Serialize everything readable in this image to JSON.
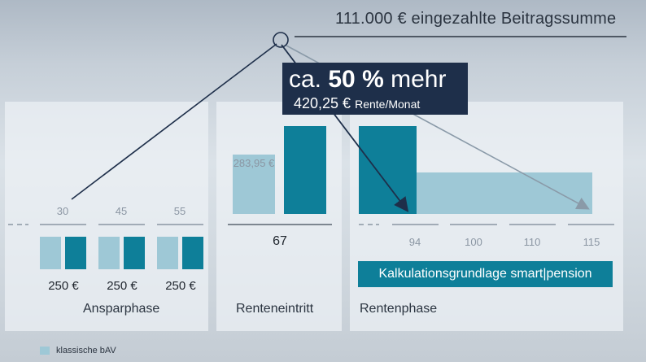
{
  "header": {
    "title": "111.000 € eingezahlte Beitragssumme"
  },
  "callout": {
    "prefix": "ca.",
    "percent": "50 %",
    "suffix": "mehr",
    "amount": "420,25 €",
    "unit": "Rente/Monat"
  },
  "panels": {
    "ansparphase": "Ansparphase",
    "renteneintritt": "Renteneintritt",
    "rentenphase": "Rentenphase"
  },
  "calc_label": "Kalkulationsgrundlage smart|pension",
  "legend": {
    "label": "klassische bAV"
  },
  "colors": {
    "light_bar": "#9ec8d6",
    "dark_bar": "#0e7f99",
    "callout_bg": "#1e2f4a"
  },
  "chart_data": {
    "type": "bar",
    "ansparphase": {
      "ages": [
        "30",
        "45",
        "55"
      ],
      "contribution_labels": [
        "250 €",
        "250 €",
        "250 €"
      ]
    },
    "renteneintritt": {
      "age": "67",
      "classic_value_label": "283,95 €",
      "classic_value": 283.95,
      "smart_value": 420.25
    },
    "rentenphase": {
      "ages": [
        "94",
        "100",
        "110",
        "115"
      ]
    }
  }
}
